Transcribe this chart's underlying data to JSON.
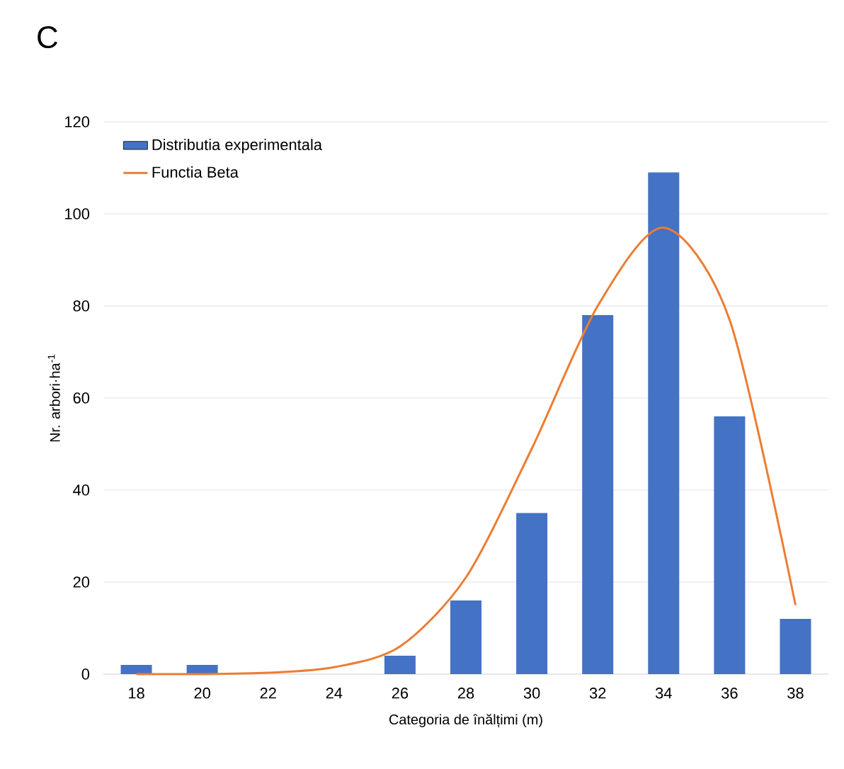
{
  "chart_data": {
    "type": "bar",
    "title": "C",
    "xlabel": "Categoria de înălțimi (m)",
    "ylabel": "Nr. arbori·ha$^{-1}$",
    "categories": [
      "18",
      "20",
      "22",
      "24",
      "26",
      "28",
      "30",
      "32",
      "34",
      "36",
      "38"
    ],
    "series": [
      {
        "name": "Distributia experimentala",
        "color": "#4472c4",
        "values": [
          2,
          2,
          0,
          0,
          4,
          16,
          35,
          78,
          109,
          56,
          12
        ]
      },
      {
        "name": "Functia Beta",
        "type": "line",
        "color": "#ed7d31",
        "values": [
          0,
          0,
          0.3,
          1.5,
          6,
          21,
          49,
          80,
          97,
          77,
          15
        ]
      }
    ],
    "ylim": [
      0,
      120
    ],
    "yticks": [
      0,
      20,
      40,
      60,
      80,
      100,
      120
    ],
    "grid": "y",
    "legend": "top left",
    "marker": "none",
    "line_style": "solid"
  }
}
